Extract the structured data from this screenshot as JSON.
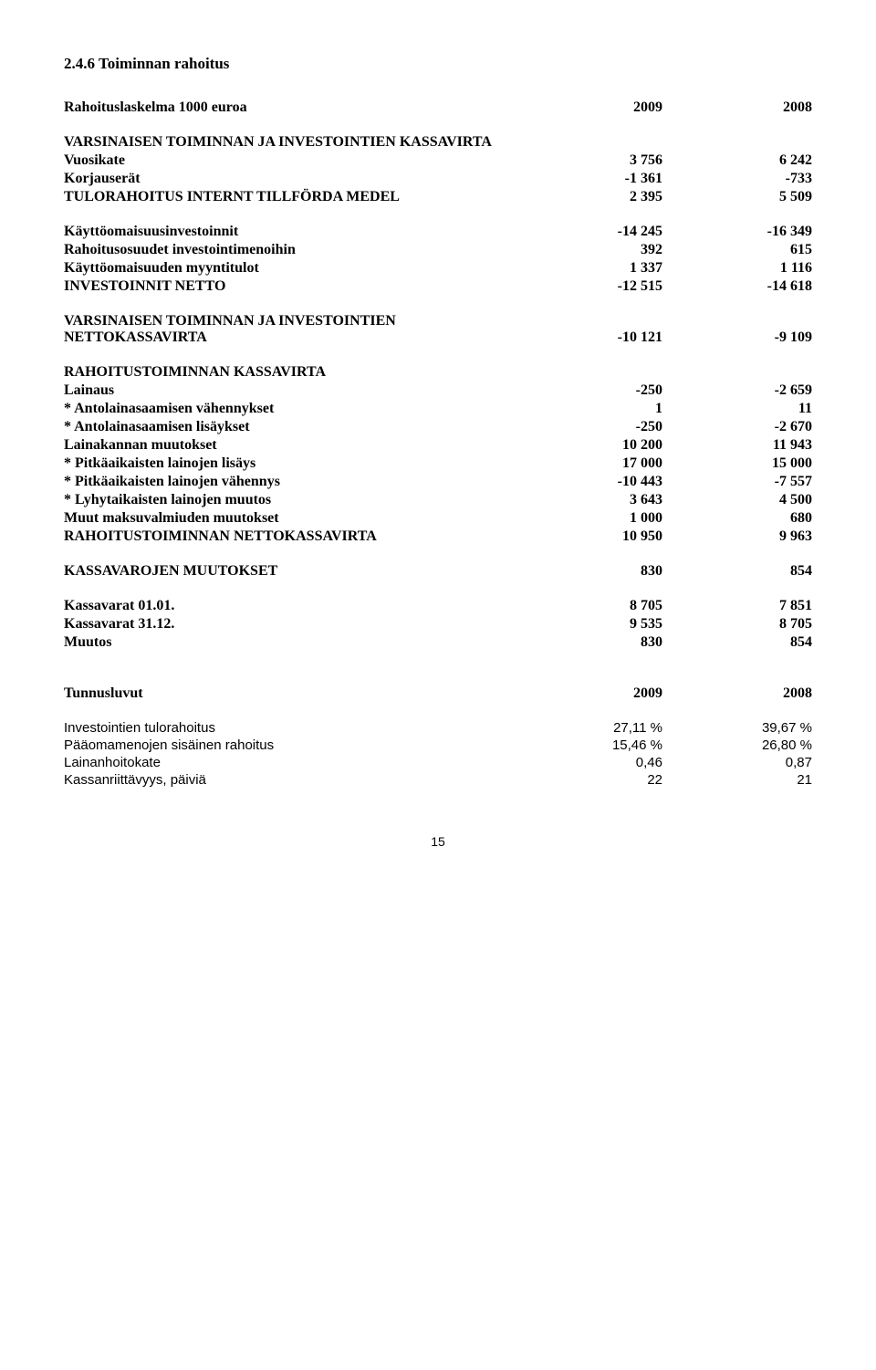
{
  "section_heading": "2.4.6 Toiminnan rahoitus",
  "header": {
    "title": "Rahoituslaskelma   1000 euroa",
    "col1": "2009",
    "col2": "2008"
  },
  "groups": [
    {
      "heading": "VARSINAISEN TOIMINNAN JA INVESTOINTIEN KASSAVIRTA",
      "rows": [
        {
          "label": "Vuosikate",
          "v1": "3 756",
          "v2": "6 242",
          "bold": true
        },
        {
          "label": "Korjauserät",
          "v1": "-1 361",
          "v2": "-733",
          "bold": true
        },
        {
          "label": "TULORAHOITUS INTERNT TILLFÖRDA MEDEL",
          "v1": "2 395",
          "v2": "5 509",
          "bold": true
        }
      ]
    },
    {
      "heading": "",
      "rows": [
        {
          "label": "Käyttöomaisuusinvestoinnit",
          "v1": "-14 245",
          "v2": "-16 349",
          "bold": true
        },
        {
          "label": "Rahoitusosuudet investointimenoihin",
          "v1": "392",
          "v2": "615",
          "bold": true
        },
        {
          "label": "Käyttöomaisuuden myyntitulot",
          "v1": "1 337",
          "v2": "1 116",
          "bold": true
        },
        {
          "label": "INVESTOINNIT NETTO",
          "v1": "-12 515",
          "v2": "-14 618",
          "bold": true
        }
      ]
    },
    {
      "heading": "VARSINAISEN TOIMINNAN JA INVESTOINTIEN NETTOKASSAVIRTA",
      "heading_v1": "-10 121",
      "heading_v2": "-9 109",
      "rows": []
    },
    {
      "heading": "RAHOITUSTOIMINNAN KASSAVIRTA",
      "rows": [
        {
          "label": "Lainaus",
          "v1": "-250",
          "v2": "-2 659",
          "bold": true
        },
        {
          "label": " * Antolainasaamisen vähennykset",
          "v1": "1",
          "v2": "11",
          "bold": true
        },
        {
          "label": " * Antolainasaamisen lisäykset",
          "v1": "-250",
          "v2": "-2 670",
          "bold": true
        },
        {
          "label": "Lainakannan muutokset",
          "v1": "10 200",
          "v2": "11 943",
          "bold": true
        },
        {
          "label": " * Pitkäaikaisten lainojen lisäys",
          "v1": "17 000",
          "v2": "15 000",
          "bold": true
        },
        {
          "label": " * Pitkäaikaisten lainojen vähennys",
          "v1": "-10 443",
          "v2": "-7 557",
          "bold": true
        },
        {
          "label": " * Lyhytaikaisten lainojen muutos",
          "v1": "3 643",
          "v2": "4 500",
          "bold": true
        },
        {
          "label": "Muut maksuvalmiuden muutokset",
          "v1": "1 000",
          "v2": "680",
          "bold": true
        },
        {
          "label": "RAHOITUSTOIMINNAN NETTOKASSAVIRTA",
          "v1": "10 950",
          "v2": "9 963",
          "bold": true
        }
      ]
    },
    {
      "heading": "",
      "rows": [
        {
          "label": "KASSAVAROJEN MUUTOKSET",
          "v1": "830",
          "v2": "854",
          "bold": true
        }
      ]
    },
    {
      "heading": "",
      "rows": [
        {
          "label": "Kassavarat 01.01.",
          "v1": "8 705",
          "v2": "7 851",
          "bold": true
        },
        {
          "label": "Kassavarat 31.12.",
          "v1": "9 535",
          "v2": "8 705",
          "bold": true
        },
        {
          "label": "Muutos",
          "v1": "830",
          "v2": "854",
          "bold": true
        }
      ]
    }
  ],
  "tunnus": {
    "header": {
      "label": "Tunnusluvut",
      "v1": "2009",
      "v2": "2008"
    },
    "rows": [
      {
        "label": "Investointien tulorahoitus",
        "v1": "27,11 %",
        "v2": "39,67 %"
      },
      {
        "label": "Pääomamenojen sisäinen rahoitus",
        "v1": "15,46 %",
        "v2": "26,80 %"
      },
      {
        "label": "Lainanhoitokate",
        "v1": "0,46",
        "v2": "0,87"
      },
      {
        "label": "Kassanriittävyys, päiviä",
        "v1": "22",
        "v2": "21"
      }
    ]
  },
  "page_number": "15"
}
